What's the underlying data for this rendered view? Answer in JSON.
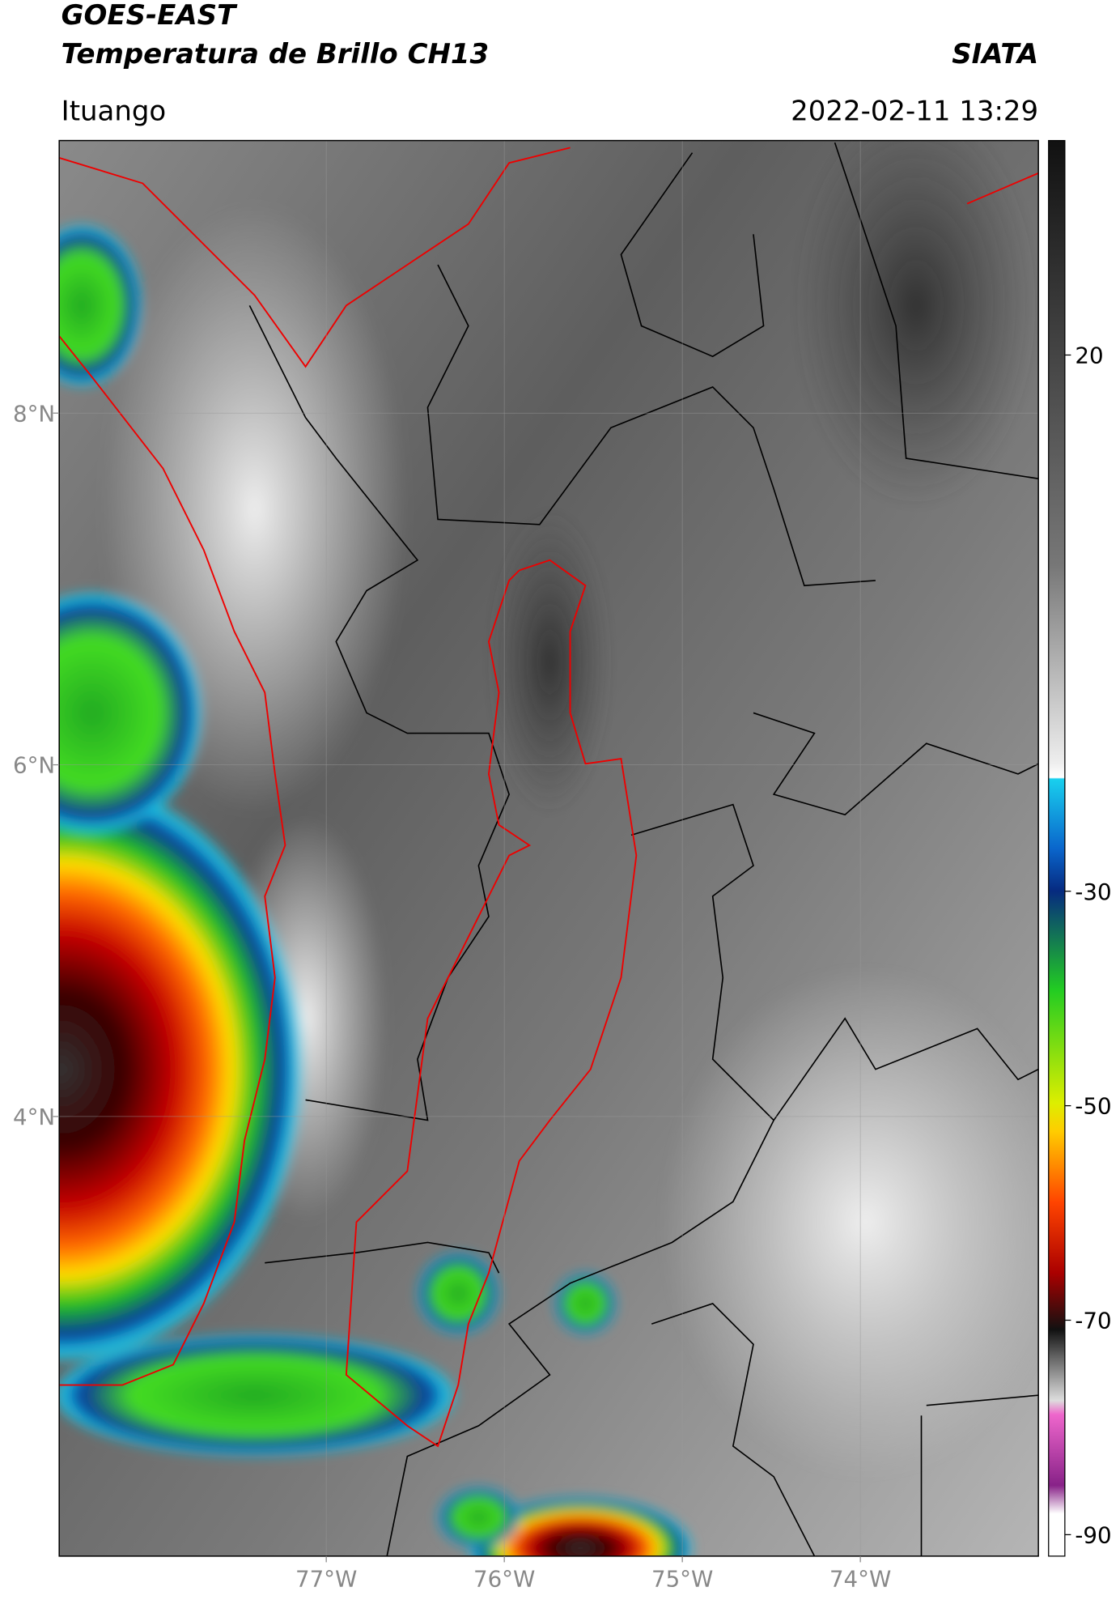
{
  "header": {
    "satellite": "GOES-EAST",
    "product": "Temperatura de Brillo CH13",
    "source": "SIATA",
    "location": "Ituango",
    "datetime": "2022-02-11 13:29"
  },
  "map": {
    "lonlim": [
      -78.5,
      -73.0
    ],
    "latlim": [
      1.5,
      9.55
    ],
    "grid": true,
    "lon_ticks": [
      {
        "value": -77,
        "label": "77°W"
      },
      {
        "value": -76,
        "label": "76°W"
      },
      {
        "value": -75,
        "label": "75°W"
      },
      {
        "value": -74,
        "label": "74°W"
      }
    ],
    "lat_ticks": [
      {
        "value": 8,
        "label": "8°N"
      },
      {
        "value": 6,
        "label": "6°N"
      },
      {
        "value": 4,
        "label": "4°N"
      }
    ]
  },
  "colorbar": {
    "range": [
      -92,
      40
    ],
    "ticks": [
      20,
      -30,
      -50,
      -70,
      -90
    ]
  }
}
